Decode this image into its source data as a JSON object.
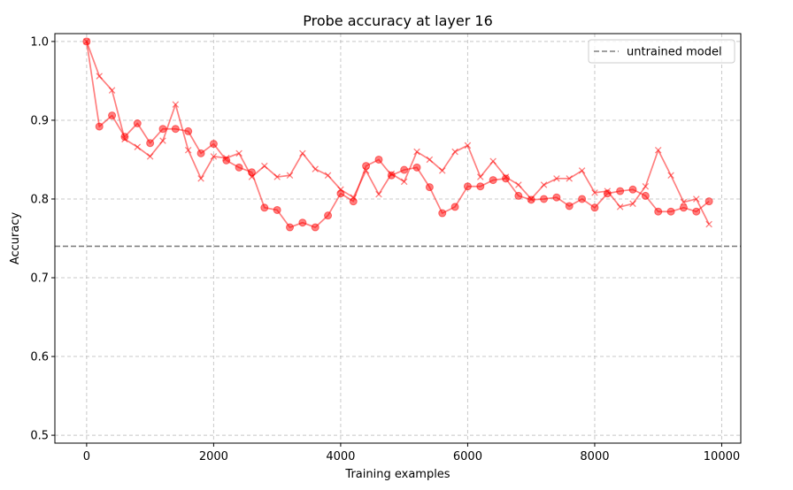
{
  "chart_data": {
    "type": "line",
    "title": "Probe accuracy at layer 16",
    "xlabel": "Training examples",
    "ylabel": "Accuracy",
    "xlim": [
      -500,
      10300
    ],
    "ylim": [
      0.49,
      1.01
    ],
    "xticks": [
      0,
      2000,
      4000,
      6000,
      8000,
      10000
    ],
    "yticks": [
      0.5,
      0.6,
      0.7,
      0.8,
      0.9,
      1.0
    ],
    "xtick_labels": [
      "0",
      "2000",
      "4000",
      "6000",
      "8000",
      "10000"
    ],
    "ytick_labels": [
      "0.5",
      "0.6",
      "0.7",
      "0.8",
      "0.9",
      "1.0"
    ],
    "grid": true,
    "legend_position": "top-right",
    "reference_line": {
      "name": "untrained model",
      "y": 0.74,
      "color": "#808080",
      "style": "dashed"
    },
    "series": [
      {
        "marker": "circle",
        "color": "#ff0000",
        "x": [
          0,
          200,
          400,
          600,
          800,
          1000,
          1200,
          1400,
          1600,
          1800,
          2000,
          2200,
          2400,
          2600,
          2800,
          3000,
          3200,
          3400,
          3600,
          3800,
          4000,
          4200,
          4400,
          4600,
          4800,
          5000,
          5200,
          5400,
          5600,
          5800,
          6000,
          6200,
          6400,
          6600,
          6800,
          7000,
          7200,
          7400,
          7600,
          7800,
          8000,
          8200,
          8400,
          8600,
          8800,
          9000,
          9200,
          9400,
          9600,
          9800
        ],
        "y": [
          1.0,
          0.892,
          0.906,
          0.879,
          0.896,
          0.871,
          0.889,
          0.889,
          0.886,
          0.858,
          0.87,
          0.849,
          0.84,
          0.834,
          0.789,
          0.786,
          0.764,
          0.77,
          0.764,
          0.779,
          0.807,
          0.797,
          0.842,
          0.85,
          0.83,
          0.837,
          0.84,
          0.815,
          0.782,
          0.79,
          0.816,
          0.816,
          0.824,
          0.826,
          0.804,
          0.799,
          0.8,
          0.802,
          0.791,
          0.8,
          0.789,
          0.807,
          0.81,
          0.812,
          0.804,
          0.784,
          0.784,
          0.789,
          0.784,
          0.797
        ]
      },
      {
        "marker": "x",
        "color": "#ff0000",
        "x": [
          0,
          200,
          400,
          600,
          800,
          1000,
          1200,
          1400,
          1600,
          1800,
          2000,
          2200,
          2400,
          2600,
          2800,
          3000,
          3200,
          3400,
          3600,
          3800,
          4000,
          4200,
          4400,
          4600,
          4800,
          5000,
          5200,
          5400,
          5600,
          5800,
          6000,
          6200,
          6400,
          6600,
          6800,
          7000,
          7200,
          7400,
          7600,
          7800,
          8000,
          8200,
          8400,
          8600,
          8800,
          9000,
          9200,
          9400,
          9600,
          9800
        ],
        "y": [
          1.0,
          0.956,
          0.938,
          0.876,
          0.866,
          0.854,
          0.874,
          0.92,
          0.862,
          0.826,
          0.854,
          0.852,
          0.858,
          0.828,
          0.842,
          0.828,
          0.83,
          0.858,
          0.838,
          0.83,
          0.812,
          0.802,
          0.836,
          0.806,
          0.832,
          0.822,
          0.86,
          0.85,
          0.836,
          0.86,
          0.868,
          0.828,
          0.848,
          0.828,
          0.818,
          0.8,
          0.818,
          0.826,
          0.826,
          0.836,
          0.808,
          0.81,
          0.79,
          0.794,
          0.816,
          0.862,
          0.83,
          0.796,
          0.8,
          0.768
        ]
      }
    ]
  }
}
